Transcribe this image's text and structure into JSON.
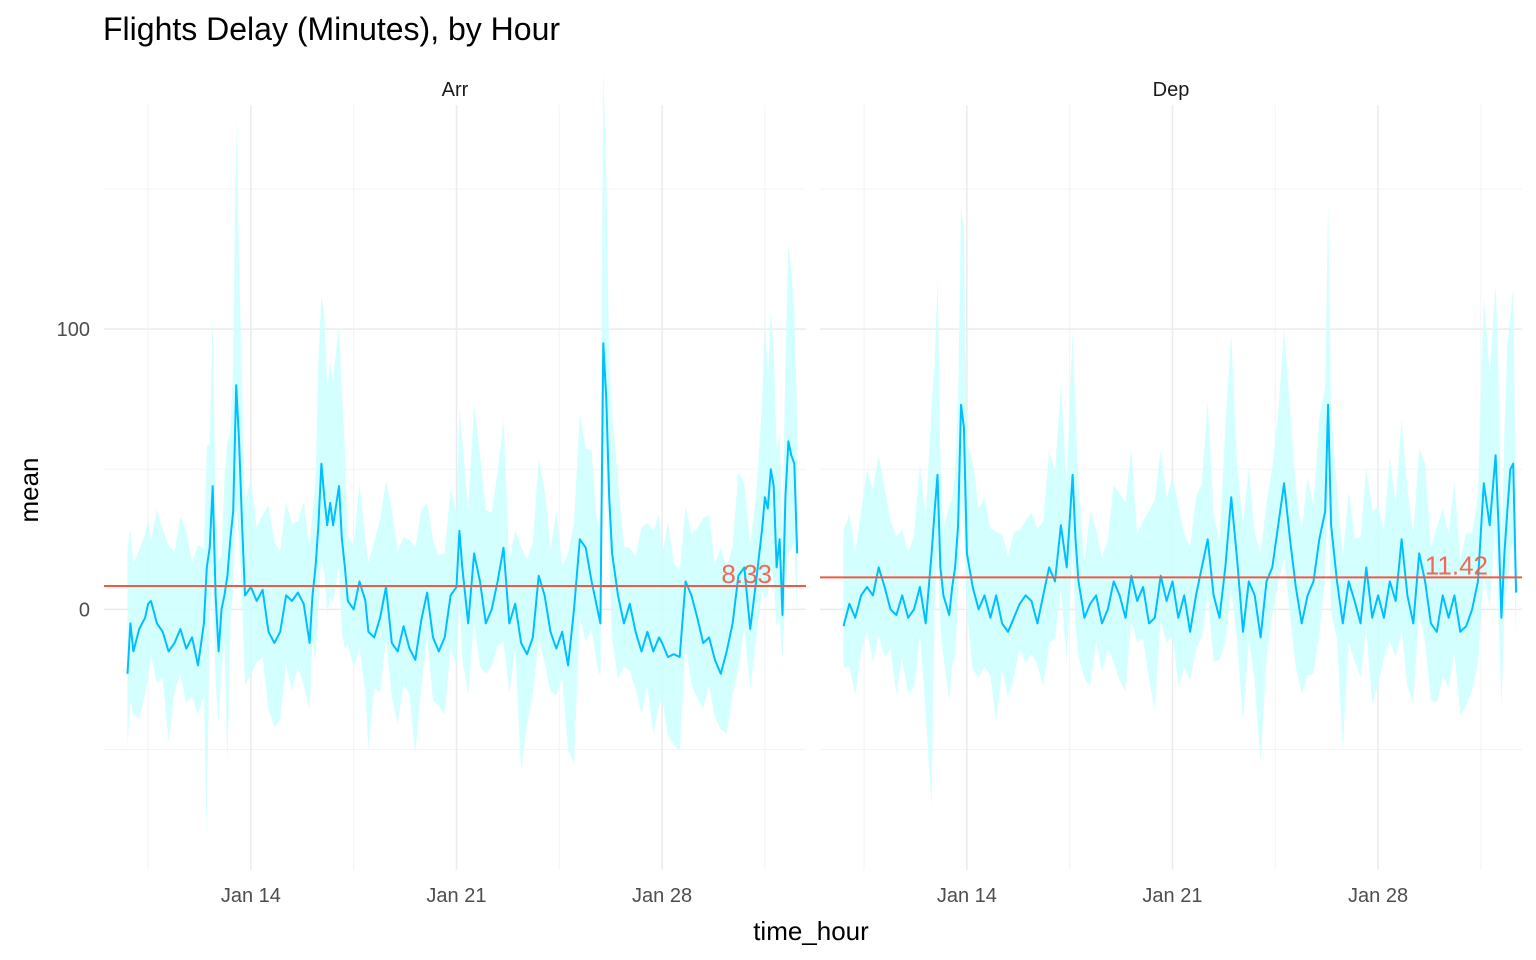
{
  "chart_data": {
    "type": "line",
    "title": "Flights Delay (Minutes), by Hour",
    "xlabel": "time_hour",
    "ylabel": "mean",
    "x_ticks": [
      "Jan 14",
      "Jan 21",
      "Jan 28"
    ],
    "x_tick_days": [
      14,
      21,
      28
    ],
    "xlim": [
      9,
      31.9
    ],
    "ylim": [
      -93,
      180
    ],
    "y_ticks": [
      0,
      100
    ],
    "grid": true,
    "colors": {
      "line": "#00bfff",
      "ribbon": "#ccffff",
      "ref": "#f05a44",
      "grid": "#ebebeb"
    },
    "panels": [
      {
        "strip": "Arr",
        "ref_value": 8.33,
        "ref_label": "8.33",
        "ribbon_low_spikes": [
          [
            12.5,
            -80
          ],
          [
            13.2,
            -55
          ],
          [
            18.0,
            -50
          ],
          [
            23.2,
            -58
          ],
          [
            25.0,
            -55
          ]
        ],
        "series": [
          [
            9.8,
            -23
          ],
          [
            9.9,
            -5
          ],
          [
            10.0,
            -15
          ],
          [
            10.2,
            -7
          ],
          [
            10.4,
            -3
          ],
          [
            10.5,
            2
          ],
          [
            10.6,
            3
          ],
          [
            10.8,
            -5
          ],
          [
            11.0,
            -8
          ],
          [
            11.2,
            -15
          ],
          [
            11.4,
            -12
          ],
          [
            11.6,
            -7
          ],
          [
            11.8,
            -14
          ],
          [
            12.0,
            -10
          ],
          [
            12.2,
            -20
          ],
          [
            12.4,
            -5
          ],
          [
            12.5,
            15
          ],
          [
            12.6,
            22
          ],
          [
            12.7,
            44
          ],
          [
            12.8,
            5
          ],
          [
            12.9,
            -15
          ],
          [
            13.0,
            0
          ],
          [
            13.1,
            5
          ],
          [
            13.2,
            12
          ],
          [
            13.3,
            25
          ],
          [
            13.4,
            35
          ],
          [
            13.5,
            80
          ],
          [
            13.6,
            60
          ],
          [
            13.7,
            30
          ],
          [
            13.8,
            5
          ],
          [
            14.0,
            8
          ],
          [
            14.2,
            3
          ],
          [
            14.4,
            7
          ],
          [
            14.6,
            -8
          ],
          [
            14.8,
            -12
          ],
          [
            15.0,
            -8
          ],
          [
            15.2,
            5
          ],
          [
            15.4,
            3
          ],
          [
            15.6,
            6
          ],
          [
            15.8,
            2
          ],
          [
            16.0,
            -12
          ],
          [
            16.1,
            5
          ],
          [
            16.2,
            15
          ],
          [
            16.3,
            30
          ],
          [
            16.4,
            52
          ],
          [
            16.5,
            40
          ],
          [
            16.6,
            30
          ],
          [
            16.7,
            38
          ],
          [
            16.8,
            30
          ],
          [
            17.0,
            44
          ],
          [
            17.1,
            25
          ],
          [
            17.2,
            15
          ],
          [
            17.3,
            3
          ],
          [
            17.5,
            0
          ],
          [
            17.7,
            10
          ],
          [
            17.9,
            3
          ],
          [
            18.0,
            -8
          ],
          [
            18.2,
            -10
          ],
          [
            18.4,
            -3
          ],
          [
            18.6,
            8
          ],
          [
            18.8,
            -12
          ],
          [
            19.0,
            -15
          ],
          [
            19.2,
            -6
          ],
          [
            19.4,
            -14
          ],
          [
            19.6,
            -18
          ],
          [
            19.8,
            -4
          ],
          [
            20.0,
            6
          ],
          [
            20.2,
            -10
          ],
          [
            20.4,
            -15
          ],
          [
            20.6,
            -10
          ],
          [
            20.8,
            5
          ],
          [
            21.0,
            8
          ],
          [
            21.1,
            28
          ],
          [
            21.2,
            15
          ],
          [
            21.4,
            -5
          ],
          [
            21.6,
            20
          ],
          [
            21.8,
            10
          ],
          [
            22.0,
            -5
          ],
          [
            22.2,
            0
          ],
          [
            22.4,
            10
          ],
          [
            22.6,
            22
          ],
          [
            22.8,
            -5
          ],
          [
            23.0,
            2
          ],
          [
            23.2,
            -12
          ],
          [
            23.4,
            -16
          ],
          [
            23.6,
            -10
          ],
          [
            23.8,
            12
          ],
          [
            24.0,
            5
          ],
          [
            24.2,
            -8
          ],
          [
            24.4,
            -14
          ],
          [
            24.6,
            -8
          ],
          [
            24.8,
            -20
          ],
          [
            25.0,
            0
          ],
          [
            25.2,
            25
          ],
          [
            25.4,
            22
          ],
          [
            25.6,
            10
          ],
          [
            25.8,
            0
          ],
          [
            25.9,
            -5
          ],
          [
            26.0,
            95
          ],
          [
            26.1,
            75
          ],
          [
            26.2,
            40
          ],
          [
            26.3,
            20
          ],
          [
            26.5,
            5
          ],
          [
            26.7,
            -5
          ],
          [
            26.9,
            2
          ],
          [
            27.1,
            -8
          ],
          [
            27.3,
            -15
          ],
          [
            27.5,
            -8
          ],
          [
            27.7,
            -15
          ],
          [
            27.9,
            -10
          ],
          [
            28.0,
            -12
          ],
          [
            28.2,
            -17
          ],
          [
            28.4,
            -16
          ],
          [
            28.6,
            -17
          ],
          [
            28.8,
            10
          ],
          [
            29.0,
            5
          ],
          [
            29.2,
            -3
          ],
          [
            29.4,
            -12
          ],
          [
            29.6,
            -10
          ],
          [
            29.8,
            -18
          ],
          [
            30.0,
            -23
          ],
          [
            30.2,
            -15
          ],
          [
            30.4,
            -5
          ],
          [
            30.6,
            12
          ],
          [
            30.8,
            15
          ],
          [
            31.0,
            -7
          ],
          [
            31.2,
            10
          ],
          [
            31.4,
            28
          ],
          [
            31.5,
            40
          ],
          [
            31.6,
            36
          ],
          [
            31.7,
            50
          ],
          [
            31.8,
            44
          ],
          [
            31.9,
            15
          ],
          [
            32.0,
            25
          ],
          [
            32.1,
            -2
          ],
          [
            32.2,
            40
          ],
          [
            32.3,
            60
          ],
          [
            32.4,
            55
          ],
          [
            32.5,
            52
          ],
          [
            32.6,
            20
          ]
        ]
      },
      {
        "strip": "Dep",
        "ref_value": 11.42,
        "ref_label": "11.42",
        "ribbon_low_spikes": [
          [
            12.8,
            -70
          ],
          [
            15.0,
            -40
          ],
          [
            24.0,
            -55
          ],
          [
            26.8,
            -50
          ]
        ],
        "series": [
          [
            9.8,
            -6
          ],
          [
            10.0,
            2
          ],
          [
            10.2,
            -3
          ],
          [
            10.4,
            5
          ],
          [
            10.6,
            8
          ],
          [
            10.8,
            5
          ],
          [
            11.0,
            15
          ],
          [
            11.2,
            8
          ],
          [
            11.4,
            0
          ],
          [
            11.6,
            -2
          ],
          [
            11.8,
            5
          ],
          [
            12.0,
            -3
          ],
          [
            12.2,
            0
          ],
          [
            12.4,
            8
          ],
          [
            12.6,
            -5
          ],
          [
            12.8,
            20
          ],
          [
            12.9,
            35
          ],
          [
            13.0,
            48
          ],
          [
            13.1,
            15
          ],
          [
            13.2,
            5
          ],
          [
            13.4,
            -2
          ],
          [
            13.5,
            8
          ],
          [
            13.6,
            15
          ],
          [
            13.7,
            30
          ],
          [
            13.8,
            73
          ],
          [
            13.9,
            65
          ],
          [
            14.0,
            20
          ],
          [
            14.2,
            8
          ],
          [
            14.4,
            0
          ],
          [
            14.6,
            5
          ],
          [
            14.8,
            -3
          ],
          [
            15.0,
            5
          ],
          [
            15.2,
            -5
          ],
          [
            15.4,
            -8
          ],
          [
            15.6,
            -3
          ],
          [
            15.8,
            2
          ],
          [
            16.0,
            5
          ],
          [
            16.2,
            3
          ],
          [
            16.4,
            -5
          ],
          [
            16.6,
            5
          ],
          [
            16.8,
            15
          ],
          [
            17.0,
            10
          ],
          [
            17.2,
            30
          ],
          [
            17.4,
            15
          ],
          [
            17.6,
            48
          ],
          [
            17.7,
            25
          ],
          [
            17.8,
            10
          ],
          [
            18.0,
            -3
          ],
          [
            18.2,
            2
          ],
          [
            18.4,
            5
          ],
          [
            18.6,
            -5
          ],
          [
            18.8,
            0
          ],
          [
            19.0,
            10
          ],
          [
            19.2,
            5
          ],
          [
            19.4,
            -3
          ],
          [
            19.6,
            12
          ],
          [
            19.8,
            3
          ],
          [
            20.0,
            8
          ],
          [
            20.2,
            -5
          ],
          [
            20.4,
            -3
          ],
          [
            20.6,
            12
          ],
          [
            20.8,
            3
          ],
          [
            21.0,
            10
          ],
          [
            21.2,
            -3
          ],
          [
            21.4,
            5
          ],
          [
            21.6,
            -8
          ],
          [
            21.8,
            5
          ],
          [
            22.0,
            15
          ],
          [
            22.2,
            25
          ],
          [
            22.4,
            5
          ],
          [
            22.6,
            -3
          ],
          [
            22.8,
            15
          ],
          [
            23.0,
            40
          ],
          [
            23.2,
            18
          ],
          [
            23.4,
            -8
          ],
          [
            23.6,
            10
          ],
          [
            23.8,
            5
          ],
          [
            24.0,
            -10
          ],
          [
            24.2,
            10
          ],
          [
            24.4,
            15
          ],
          [
            24.6,
            30
          ],
          [
            24.8,
            45
          ],
          [
            25.0,
            25
          ],
          [
            25.2,
            8
          ],
          [
            25.4,
            -5
          ],
          [
            25.6,
            5
          ],
          [
            25.8,
            10
          ],
          [
            26.0,
            25
          ],
          [
            26.2,
            35
          ],
          [
            26.3,
            73
          ],
          [
            26.4,
            30
          ],
          [
            26.6,
            10
          ],
          [
            26.8,
            -5
          ],
          [
            27.0,
            10
          ],
          [
            27.2,
            3
          ],
          [
            27.4,
            -5
          ],
          [
            27.6,
            15
          ],
          [
            27.8,
            -3
          ],
          [
            28.0,
            5
          ],
          [
            28.2,
            -3
          ],
          [
            28.4,
            10
          ],
          [
            28.6,
            3
          ],
          [
            28.8,
            25
          ],
          [
            29.0,
            5
          ],
          [
            29.2,
            -5
          ],
          [
            29.4,
            20
          ],
          [
            29.6,
            10
          ],
          [
            29.8,
            -5
          ],
          [
            30.0,
            -8
          ],
          [
            30.2,
            5
          ],
          [
            30.4,
            -3
          ],
          [
            30.6,
            5
          ],
          [
            30.8,
            -8
          ],
          [
            31.0,
            -6
          ],
          [
            31.2,
            0
          ],
          [
            31.4,
            10
          ],
          [
            31.6,
            45
          ],
          [
            31.8,
            30
          ],
          [
            32.0,
            55
          ],
          [
            32.1,
            30
          ],
          [
            32.2,
            -3
          ],
          [
            32.3,
            20
          ],
          [
            32.4,
            35
          ],
          [
            32.5,
            50
          ],
          [
            32.6,
            52
          ],
          [
            32.7,
            6
          ]
        ]
      }
    ]
  }
}
